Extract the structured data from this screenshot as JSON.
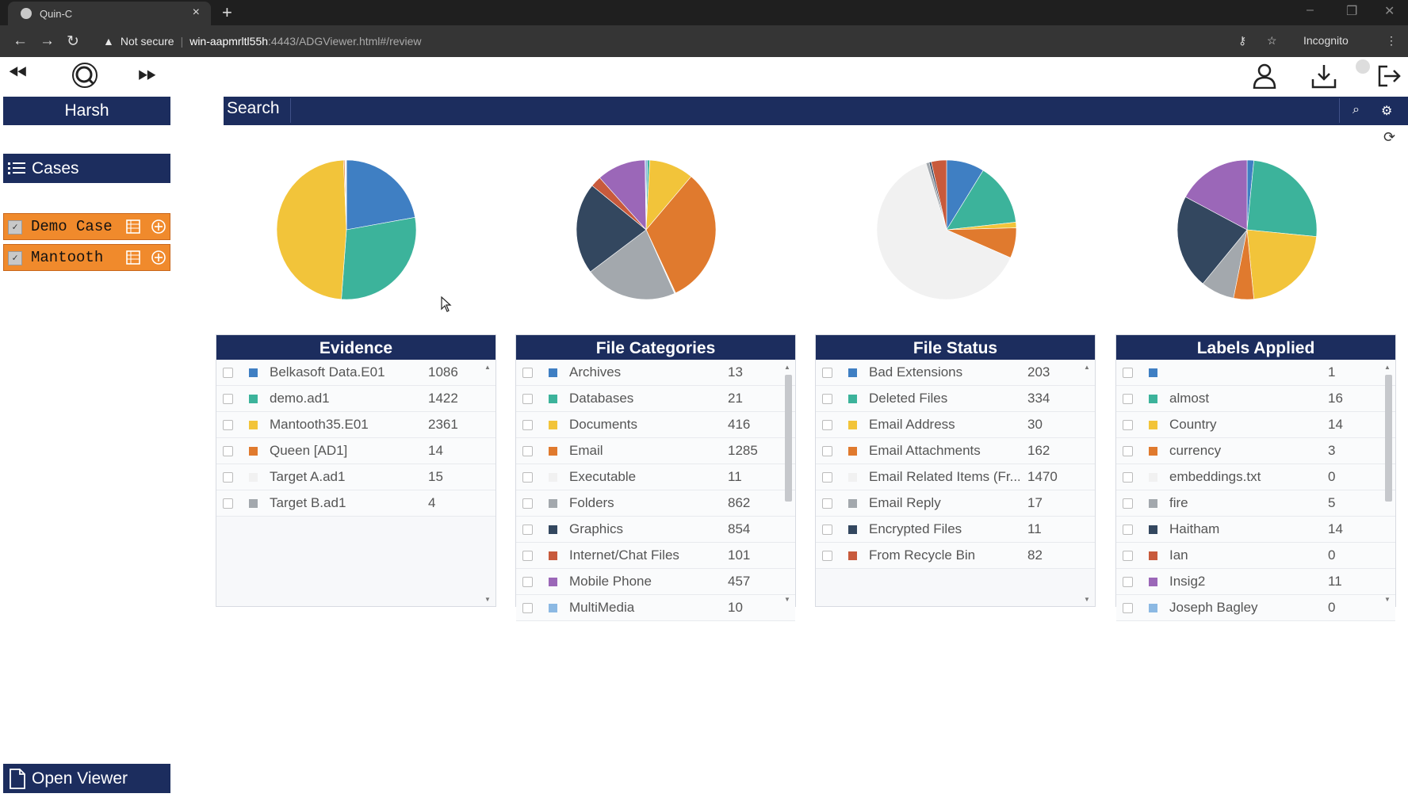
{
  "browser": {
    "tab_title": "Quin-C",
    "tab_close": "×",
    "new_tab": "+",
    "security": "Not secure",
    "url_host": "win-aapmrltl55h",
    "url_path": ":4443/ADGViewer.html#/review",
    "incognito": "Incognito"
  },
  "user": {
    "name": "Harsh"
  },
  "search": {
    "label": "Search",
    "value": ""
  },
  "sidebar": {
    "cases_label": "Cases",
    "cases": [
      {
        "name": "Demo Case",
        "checked": true
      },
      {
        "name": "Mantooth",
        "checked": true
      }
    ],
    "open_viewer": "Open Viewer"
  },
  "colors": {
    "navy": "#1c2d5e",
    "orange": "#f08a2c",
    "palette": [
      "#3f7fc3",
      "#3cb39b",
      "#f2c43a",
      "#e07a2e",
      "#f1f1f1",
      "#a3a8ad",
      "#33475f",
      "#c85a3c",
      "#9b67b8",
      "#8cb9e3"
    ]
  },
  "panels": [
    {
      "title": "Evidence",
      "rows": [
        {
          "name": "Belkasoft Data.E01",
          "count": "1086",
          "color": "#3f7fc3"
        },
        {
          "name": "demo.ad1",
          "count": "1422",
          "color": "#3cb39b"
        },
        {
          "name": "Mantooth35.E01",
          "count": "2361",
          "color": "#f2c43a"
        },
        {
          "name": "Queen [AD1]",
          "count": "14",
          "color": "#e07a2e"
        },
        {
          "name": "Target A.ad1",
          "count": "15",
          "color": "#f1f1f1"
        },
        {
          "name": "Target B.ad1",
          "count": "4",
          "color": "#a3a8ad"
        }
      ]
    },
    {
      "title": "File Categories",
      "rows": [
        {
          "name": "Archives",
          "count": "13",
          "color": "#3f7fc3"
        },
        {
          "name": "Databases",
          "count": "21",
          "color": "#3cb39b"
        },
        {
          "name": "Documents",
          "count": "416",
          "color": "#f2c43a"
        },
        {
          "name": "Email",
          "count": "1285",
          "color": "#e07a2e"
        },
        {
          "name": "Executable",
          "count": "11",
          "color": "#f1f1f1"
        },
        {
          "name": "Folders",
          "count": "862",
          "color": "#a3a8ad"
        },
        {
          "name": "Graphics",
          "count": "854",
          "color": "#33475f"
        },
        {
          "name": "Internet/Chat Files",
          "count": "101",
          "color": "#c85a3c"
        },
        {
          "name": "Mobile Phone",
          "count": "457",
          "color": "#9b67b8"
        },
        {
          "name": "MultiMedia",
          "count": "10",
          "color": "#8cb9e3"
        }
      ]
    },
    {
      "title": "File Status",
      "rows": [
        {
          "name": "Bad Extensions",
          "count": "203",
          "color": "#3f7fc3"
        },
        {
          "name": "Deleted Files",
          "count": "334",
          "color": "#3cb39b"
        },
        {
          "name": "Email Address",
          "count": "30",
          "color": "#f2c43a"
        },
        {
          "name": "Email Attachments",
          "count": "162",
          "color": "#e07a2e"
        },
        {
          "name": "Email Related Items (Fr...",
          "count": "1470",
          "color": "#f1f1f1"
        },
        {
          "name": "Email Reply",
          "count": "17",
          "color": "#a3a8ad"
        },
        {
          "name": "Encrypted Files",
          "count": "11",
          "color": "#33475f"
        },
        {
          "name": "From Recycle Bin",
          "count": "82",
          "color": "#c85a3c"
        }
      ]
    },
    {
      "title": "Labels Applied",
      "rows": [
        {
          "name": "",
          "count": "1",
          "color": "#3f7fc3"
        },
        {
          "name": "almost",
          "count": "16",
          "color": "#3cb39b"
        },
        {
          "name": "Country",
          "count": "14",
          "color": "#f2c43a"
        },
        {
          "name": "currency",
          "count": "3",
          "color": "#e07a2e"
        },
        {
          "name": "embeddings.txt",
          "count": "0",
          "color": "#f1f1f1"
        },
        {
          "name": "fire",
          "count": "5",
          "color": "#a3a8ad"
        },
        {
          "name": "Haitham",
          "count": "14",
          "color": "#33475f"
        },
        {
          "name": "Ian",
          "count": "0",
          "color": "#c85a3c"
        },
        {
          "name": "Insig2",
          "count": "11",
          "color": "#9b67b8"
        },
        {
          "name": "Joseph Bagley",
          "count": "0",
          "color": "#8cb9e3"
        }
      ]
    }
  ],
  "chart_data": [
    {
      "type": "pie",
      "title": "",
      "labels": [
        "Belkasoft Data.E01",
        "demo.ad1",
        "Mantooth35.E01",
        "Queen [AD1]",
        "Target A.ad1",
        "Target B.ad1"
      ],
      "values": [
        1086,
        1422,
        2361,
        14,
        15,
        4
      ]
    },
    {
      "type": "pie",
      "title": "",
      "labels": [
        "Archives",
        "Databases",
        "Documents",
        "Email",
        "Executable",
        "Folders",
        "Graphics",
        "Internet/Chat Files",
        "Mobile Phone",
        "MultiMedia"
      ],
      "values": [
        13,
        21,
        416,
        1285,
        11,
        862,
        854,
        101,
        457,
        10
      ]
    },
    {
      "type": "pie",
      "title": "",
      "labels": [
        "Bad Extensions",
        "Deleted Files",
        "Email Address",
        "Email Attachments",
        "Email Related Items (Fr...",
        "Email Reply",
        "Encrypted Files",
        "From Recycle Bin"
      ],
      "values": [
        203,
        334,
        30,
        162,
        1470,
        17,
        11,
        82
      ]
    },
    {
      "type": "pie",
      "title": "",
      "labels": [
        "",
        "almost",
        "Country",
        "currency",
        "embeddings.txt",
        "fire",
        "Haitham",
        "Ian",
        "Insig2",
        "Joseph Bagley"
      ],
      "values": [
        1,
        16,
        14,
        3,
        0,
        5,
        14,
        0,
        11,
        0
      ]
    }
  ]
}
